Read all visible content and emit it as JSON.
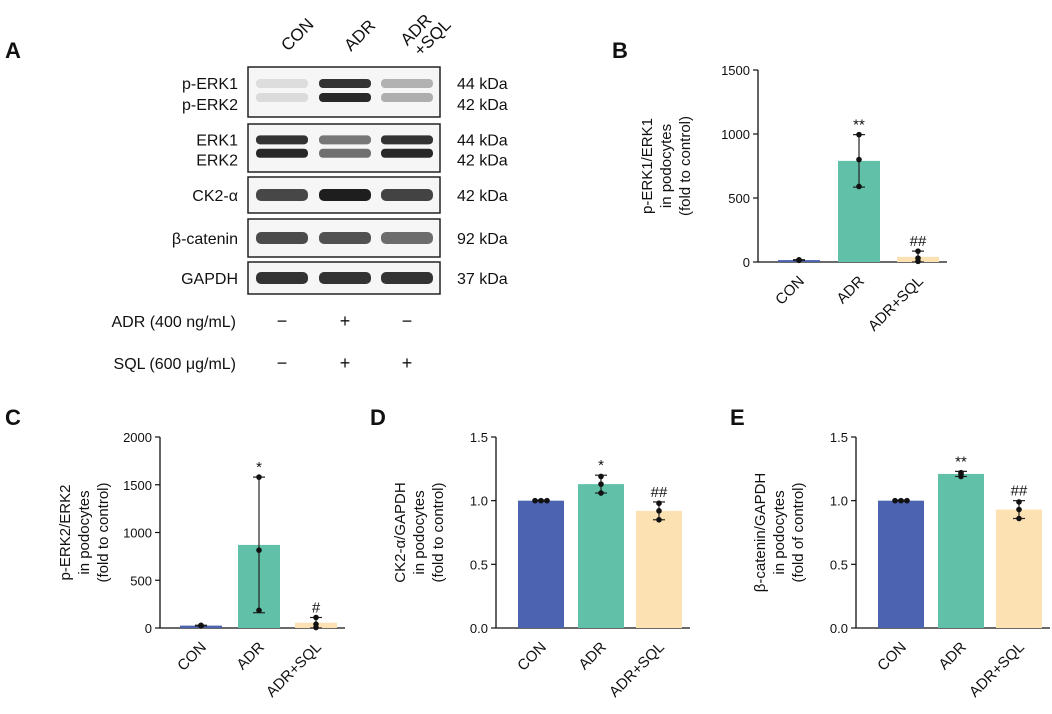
{
  "panels": {
    "A": {
      "letter": "A",
      "lanes": [
        "CON",
        "ADR",
        "ADR\n+SQL"
      ],
      "blots": [
        {
          "labels": [
            "p-ERK1",
            "p-ERK2"
          ],
          "mw": [
            "44 kDa",
            "42 kDa"
          ],
          "intensity": [
            0.08,
            0.95,
            0.3
          ]
        },
        {
          "labels": [
            "ERK1",
            "ERK2"
          ],
          "mw": [
            "44 kDa",
            "42 kDa"
          ],
          "intensity": [
            0.95,
            0.6,
            0.95
          ]
        },
        {
          "labels": [
            "CK2-α"
          ],
          "mw": [
            "42 kDa"
          ],
          "intensity": [
            0.8,
            1.0,
            0.82
          ]
        },
        {
          "labels": [
            "β-catenin"
          ],
          "mw": [
            "92 kDa"
          ],
          "intensity": [
            0.78,
            0.75,
            0.62
          ]
        },
        {
          "labels": [
            "GAPDH"
          ],
          "mw": [
            "37 kDa"
          ],
          "intensity": [
            0.9,
            0.9,
            0.9
          ]
        }
      ],
      "treatments": [
        {
          "label": "ADR (400 ng/mL)",
          "signs": [
            "−",
            "+",
            "−"
          ]
        },
        {
          "label": "SQL (600 μg/mL)",
          "signs": [
            "−",
            "+",
            "+"
          ]
        }
      ]
    }
  },
  "colors": {
    "CON": "#4c63b1",
    "ADR": "#61c1a8",
    "ADR+SQL": "#fce2b3"
  },
  "chart_data": [
    {
      "panel": "B",
      "type": "bar",
      "categories": [
        "CON",
        "ADR",
        "ADR+SQL"
      ],
      "values": [
        15,
        790,
        40
      ],
      "errors": [
        3,
        205,
        45
      ],
      "points": [
        [
          13,
          15,
          17
        ],
        [
          590,
          800,
          995
        ],
        [
          5,
          30,
          85
        ]
      ],
      "sig": [
        "",
        "**",
        "##"
      ],
      "ylabel": [
        "p-ERK1/ERK1",
        "in podocytes",
        "(fold to control)"
      ],
      "ylim": [
        0,
        1500
      ],
      "yticks": [
        0,
        500,
        1000,
        1500
      ]
    },
    {
      "panel": "C",
      "type": "bar",
      "categories": [
        "CON",
        "ADR",
        "ADR+SQL"
      ],
      "values": [
        25,
        870,
        55
      ],
      "errors": [
        4,
        710,
        55
      ],
      "points": [
        [
          22,
          25,
          28
        ],
        [
          185,
          815,
          1580
        ],
        [
          5,
          40,
          110
        ]
      ],
      "sig": [
        "",
        "*",
        "#"
      ],
      "ylabel": [
        "p-ERK2/ERK2",
        "in podocytes",
        "(fold to control)"
      ],
      "ylim": [
        0,
        2000
      ],
      "yticks": [
        0,
        500,
        1000,
        1500,
        2000
      ]
    },
    {
      "panel": "D",
      "type": "bar",
      "categories": [
        "CON",
        "ADR",
        "ADR+SQL"
      ],
      "values": [
        1.0,
        1.13,
        0.92
      ],
      "errors": [
        0.005,
        0.07,
        0.07
      ],
      "points": [
        [
          1.0,
          1.0,
          1.0
        ],
        [
          1.06,
          1.13,
          1.19
        ],
        [
          0.85,
          0.92,
          0.98
        ]
      ],
      "sig": [
        "",
        "*",
        "##"
      ],
      "ylabel": [
        "CK2-α/GAPDH",
        "in podocytes",
        "(fold to control)"
      ],
      "ylim": [
        0,
        1.5
      ],
      "yticks": [
        "0.0",
        "0.5",
        "1.0",
        "1.5"
      ]
    },
    {
      "panel": "E",
      "type": "bar",
      "categories": [
        "CON",
        "ADR",
        "ADR+SQL"
      ],
      "values": [
        1.0,
        1.21,
        0.93
      ],
      "errors": [
        0.005,
        0.02,
        0.07
      ],
      "points": [
        [
          1.0,
          1.0,
          1.0
        ],
        [
          1.19,
          1.21,
          1.22
        ],
        [
          0.86,
          0.93,
          0.99
        ]
      ],
      "sig": [
        "",
        "**",
        "##"
      ],
      "ylabel": [
        "β-catenin/GAPDH",
        "in podocytes",
        "(fold of control)"
      ],
      "ylim": [
        0,
        1.5
      ],
      "yticks": [
        "0.0",
        "0.5",
        "1.0",
        "1.5"
      ]
    }
  ]
}
